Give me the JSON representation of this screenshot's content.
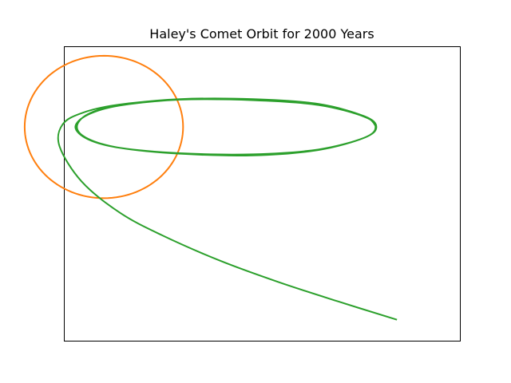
{
  "chart_data": {
    "type": "line",
    "title": "Haley's Comet Orbit for 2000 Years",
    "xlabel": "",
    "ylabel": "",
    "ticks_shown": false,
    "grid": false,
    "legend": "none",
    "series": [
      {
        "color": "#ff7f0e",
        "shape": "ellipse",
        "center": [
          0,
          0
        ],
        "semi_axis_x": 1.0,
        "semi_axis_y": 1.33
      },
      {
        "color": "#2ca02c",
        "shape": "orbit",
        "points": [
          [
            3.7,
            -3.6
          ],
          [
            2.96,
            -3.26
          ],
          [
            2.21,
            -2.9
          ],
          [
            1.47,
            -2.5
          ],
          [
            0.73,
            -2.02
          ],
          [
            0.2,
            -1.6
          ],
          [
            -0.28,
            -1.02
          ],
          [
            -0.56,
            -0.36
          ],
          [
            -0.52,
            0.05
          ],
          [
            -0.26,
            0.27
          ],
          [
            0.2,
            0.42
          ],
          [
            0.96,
            0.51
          ],
          [
            1.89,
            0.5
          ],
          [
            2.71,
            0.41
          ],
          [
            3.29,
            0.19
          ],
          [
            3.43,
            0.0
          ],
          [
            3.29,
            -0.2
          ],
          [
            2.71,
            -0.42
          ],
          [
            1.89,
            -0.51
          ],
          [
            0.96,
            -0.49
          ],
          [
            0.2,
            -0.39
          ],
          [
            -0.2,
            -0.23
          ],
          [
            -0.36,
            0.0
          ],
          [
            -0.2,
            0.23
          ],
          [
            0.2,
            0.4
          ],
          [
            0.96,
            0.51
          ],
          [
            1.89,
            0.52
          ],
          [
            2.71,
            0.43
          ],
          [
            3.29,
            0.2
          ],
          [
            3.44,
            0.0
          ],
          [
            3.29,
            -0.2
          ],
          [
            2.71,
            -0.43
          ],
          [
            1.89,
            -0.53
          ],
          [
            0.96,
            -0.5
          ],
          [
            0.2,
            -0.39
          ],
          [
            -0.2,
            -0.22
          ],
          [
            -0.34,
            0.0
          ],
          [
            -0.2,
            0.24
          ],
          [
            0.2,
            0.41
          ],
          [
            0.96,
            0.52
          ],
          [
            1.89,
            0.52
          ],
          [
            2.71,
            0.43
          ],
          [
            3.29,
            0.2
          ],
          [
            3.44,
            0.0
          ]
        ]
      }
    ],
    "xlim": [
      -0.5,
      4.5
    ],
    "ylim": [
      -4.0,
      1.5
    ]
  }
}
